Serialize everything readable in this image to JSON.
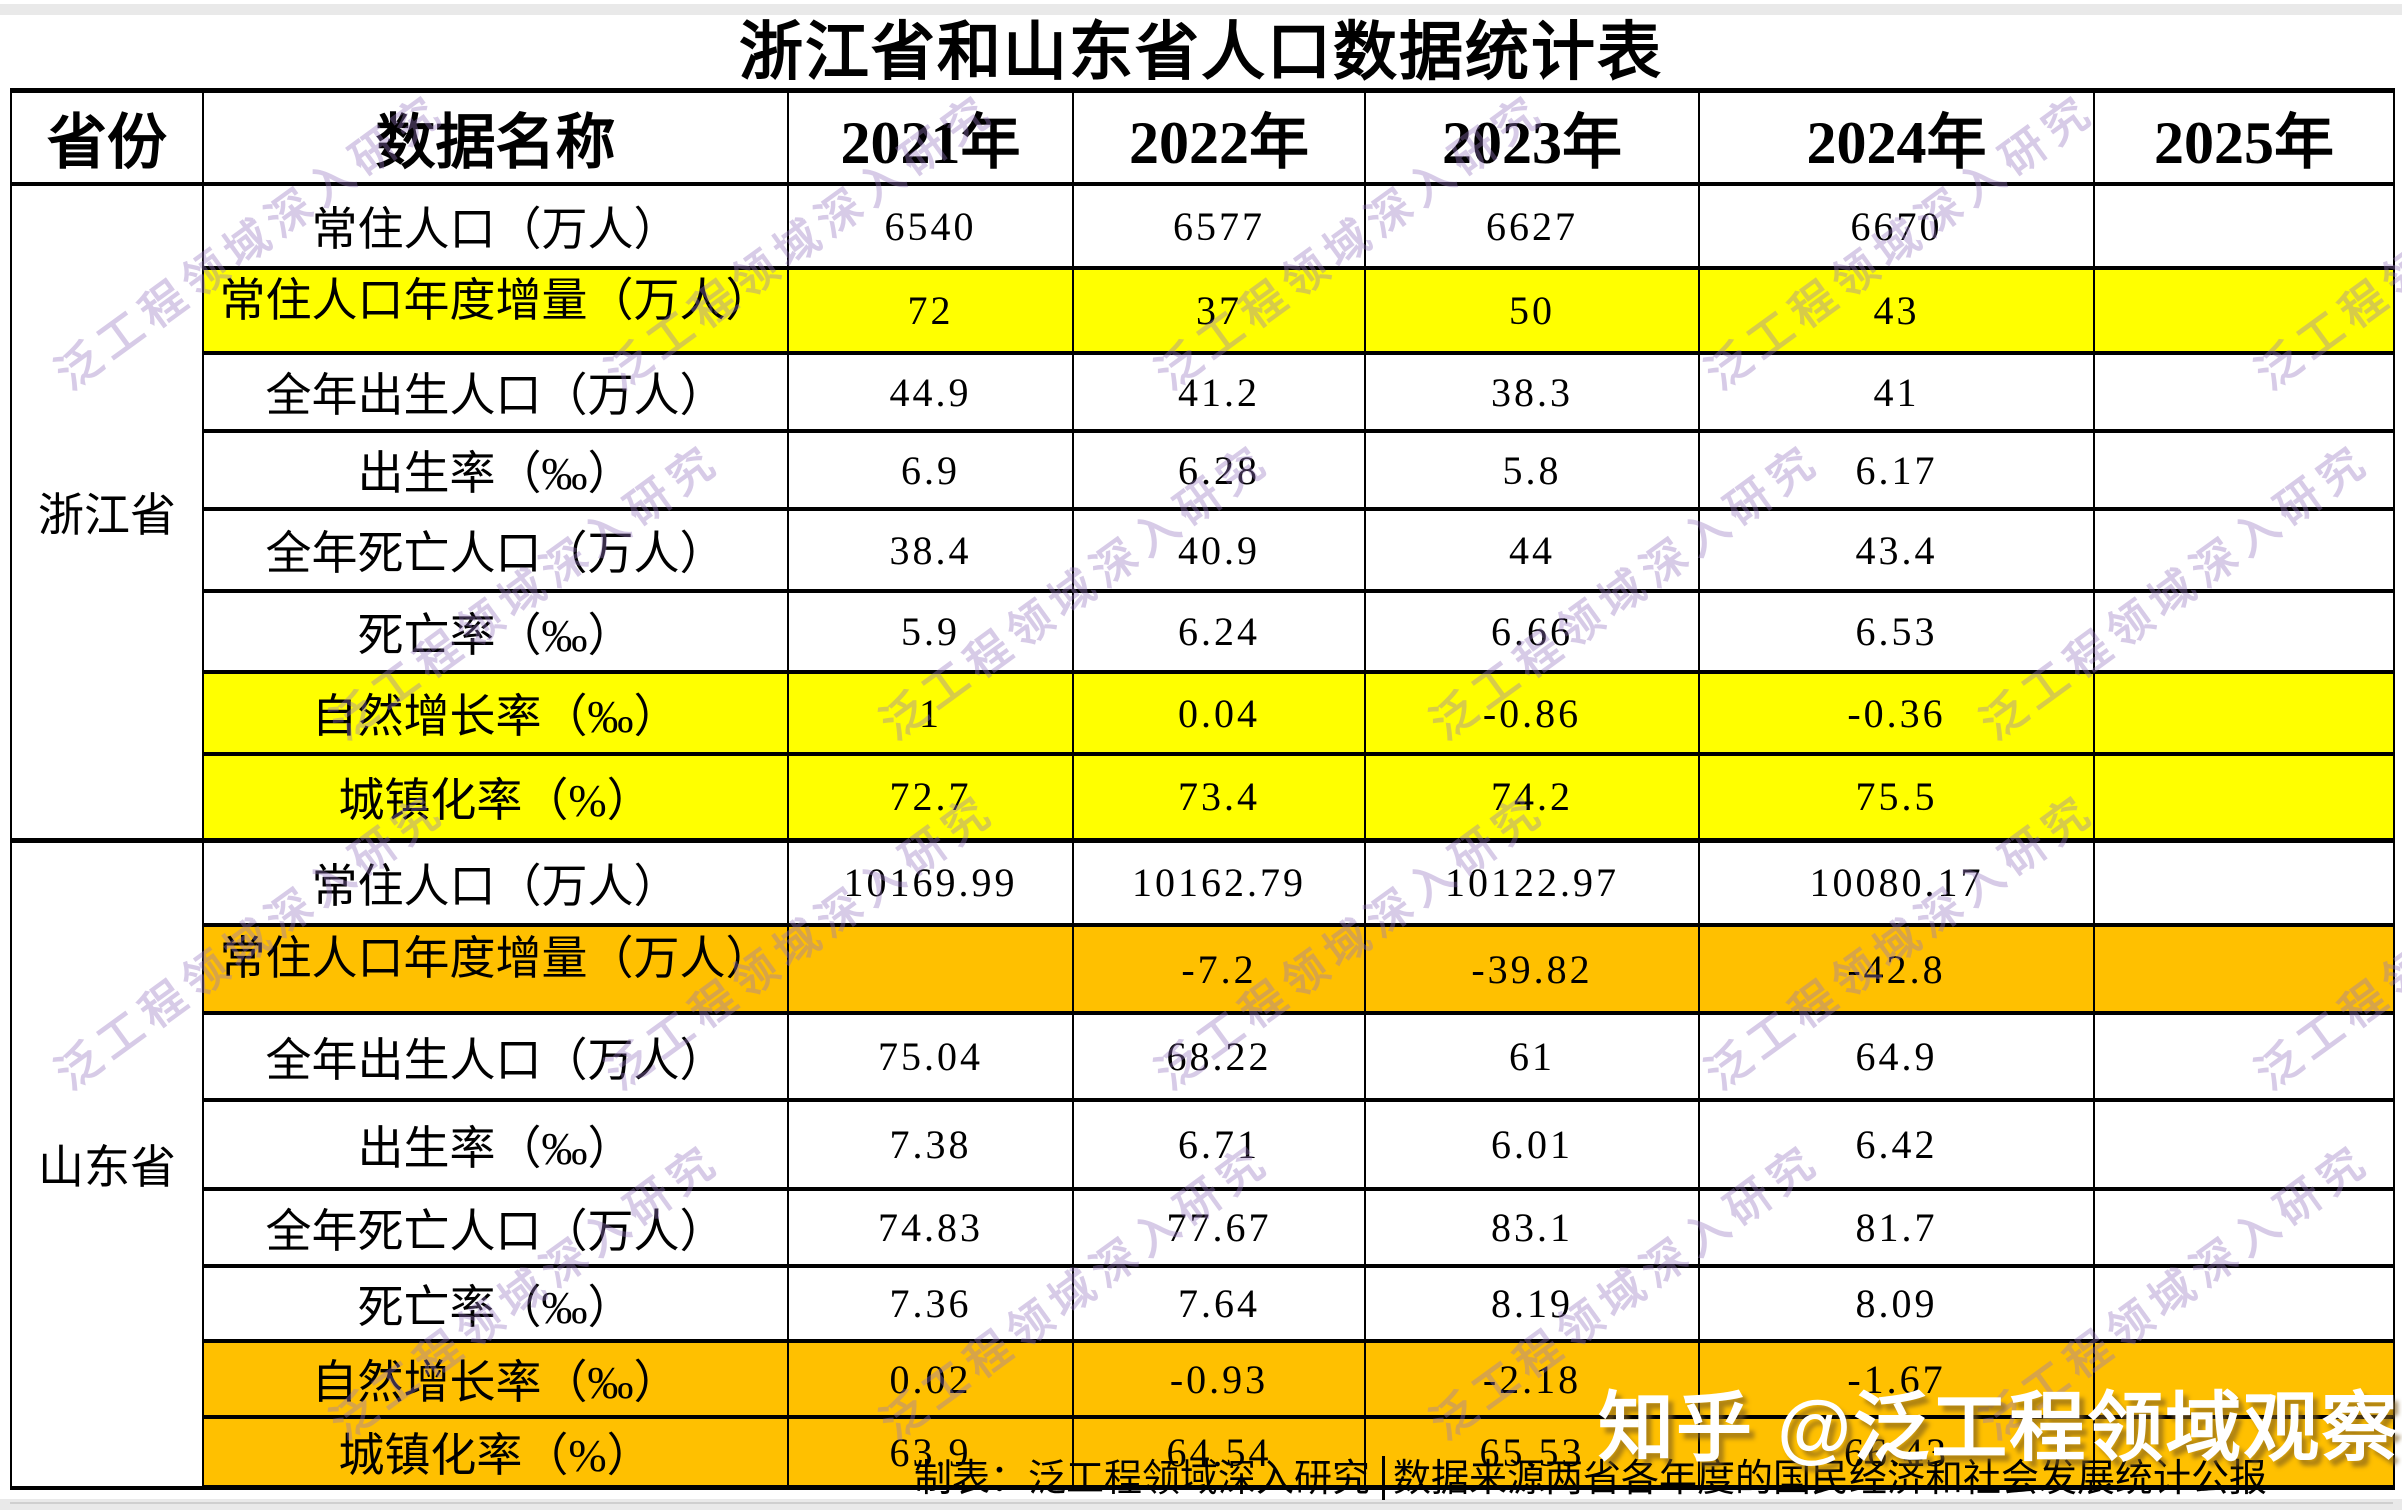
{
  "chart_data": {
    "type": "table",
    "title": "浙江省和山东省人口数据统计表",
    "columns": [
      "省份",
      "数据名称",
      "2021年",
      "2022年",
      "2023年",
      "2024年",
      "2025年"
    ],
    "sections": [
      {
        "province": "浙江省",
        "highlight_color": "#FFFF00",
        "rows": [
          {
            "label": "常住人口（万人）",
            "highlighted": false,
            "values": [
              "6540",
              "6577",
              "6627",
              "6670",
              ""
            ]
          },
          {
            "label": "常住人口年度增量（万人）",
            "highlighted": true,
            "values": [
              "72",
              "37",
              "50",
              "43",
              ""
            ]
          },
          {
            "label": "全年出生人口（万人）",
            "highlighted": false,
            "values": [
              "44.9",
              "41.2",
              "38.3",
              "41",
              ""
            ]
          },
          {
            "label": "出生率（‰）",
            "highlighted": false,
            "values": [
              "6.9",
              "6.28",
              "5.8",
              "6.17",
              ""
            ]
          },
          {
            "label": "全年死亡人口（万人）",
            "highlighted": false,
            "values": [
              "38.4",
              "40.9",
              "44",
              "43.4",
              ""
            ]
          },
          {
            "label": "死亡率（‰）",
            "highlighted": false,
            "values": [
              "5.9",
              "6.24",
              "6.66",
              "6.53",
              ""
            ]
          },
          {
            "label": "自然增长率（‰）",
            "highlighted": true,
            "values": [
              "1",
              "0.04",
              "-0.86",
              "-0.36",
              ""
            ]
          },
          {
            "label": "城镇化率（%）",
            "highlighted": true,
            "values": [
              "72.7",
              "73.4",
              "74.2",
              "75.5",
              ""
            ]
          }
        ]
      },
      {
        "province": "山东省",
        "highlight_color": "#FFC000",
        "rows": [
          {
            "label": "常住人口（万人）",
            "highlighted": false,
            "values": [
              "10169.99",
              "10162.79",
              "10122.97",
              "10080.17",
              ""
            ]
          },
          {
            "label": "常住人口年度增量（万人）",
            "highlighted": true,
            "values": [
              "",
              "-7.2",
              "-39.82",
              "-42.8",
              ""
            ]
          },
          {
            "label": "全年出生人口（万人）",
            "highlighted": false,
            "values": [
              "75.04",
              "68.22",
              "61",
              "64.9",
              ""
            ]
          },
          {
            "label": "出生率（‰）",
            "highlighted": false,
            "values": [
              "7.38",
              "6.71",
              "6.01",
              "6.42",
              ""
            ]
          },
          {
            "label": "全年死亡人口（万人）",
            "highlighted": false,
            "values": [
              "74.83",
              "77.67",
              "83.1",
              "81.7",
              ""
            ]
          },
          {
            "label": "死亡率（‰）",
            "highlighted": false,
            "values": [
              "7.36",
              "7.64",
              "8.19",
              "8.09",
              ""
            ]
          },
          {
            "label": "自然增长率（‰）",
            "highlighted": true,
            "values": [
              "0.02",
              "-0.93",
              "-2.18",
              "-1.67",
              ""
            ]
          },
          {
            "label": "城镇化率（%）",
            "highlighted": true,
            "values": [
              "63.9",
              "64.54",
              "65.53",
              "66.43",
              ""
            ]
          }
        ]
      }
    ],
    "footer_left": "制表：泛工程领域深入研究",
    "footer_right": "数据来源两省各年度的国民经济和社会发展统计公报"
  },
  "watermarks": {
    "tile": "泛工程领域深入研究",
    "badge": "知乎 @泛工程领域观察"
  },
  "colors": {
    "zhejiang_highlight": "#FFFF00",
    "shandong_highlight": "#FFC000",
    "tile_watermark": "#9676C0",
    "badge_text": "#FFFFFF"
  }
}
